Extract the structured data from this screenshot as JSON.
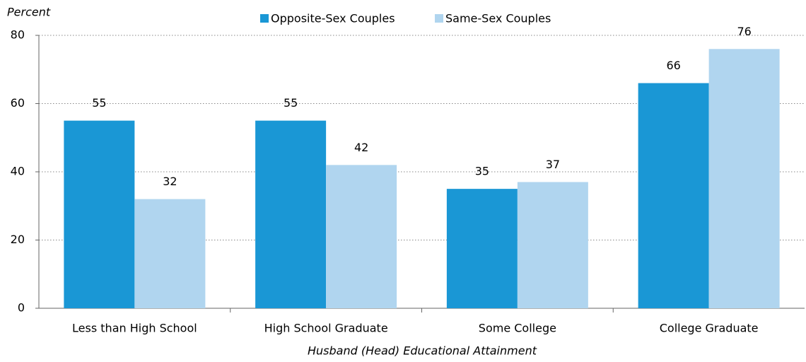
{
  "chart_data": {
    "type": "bar",
    "y_axis_title": "Percent",
    "x_axis_title": "Husband (Head) Educational Attainment",
    "categories": [
      "Less than High School",
      "High School Graduate",
      "Some College",
      "College Graduate"
    ],
    "series": [
      {
        "name": "Opposite-Sex Couples",
        "color": "#1a97d5",
        "values": [
          55,
          55,
          35,
          66
        ]
      },
      {
        "name": "Same-Sex Couples",
        "color": "#b0d5ef",
        "values": [
          32,
          42,
          37,
          76
        ]
      }
    ],
    "ylim": [
      0,
      80
    ],
    "yticks": [
      0,
      20,
      40,
      60,
      80
    ],
    "grid": true,
    "legend": "top"
  }
}
